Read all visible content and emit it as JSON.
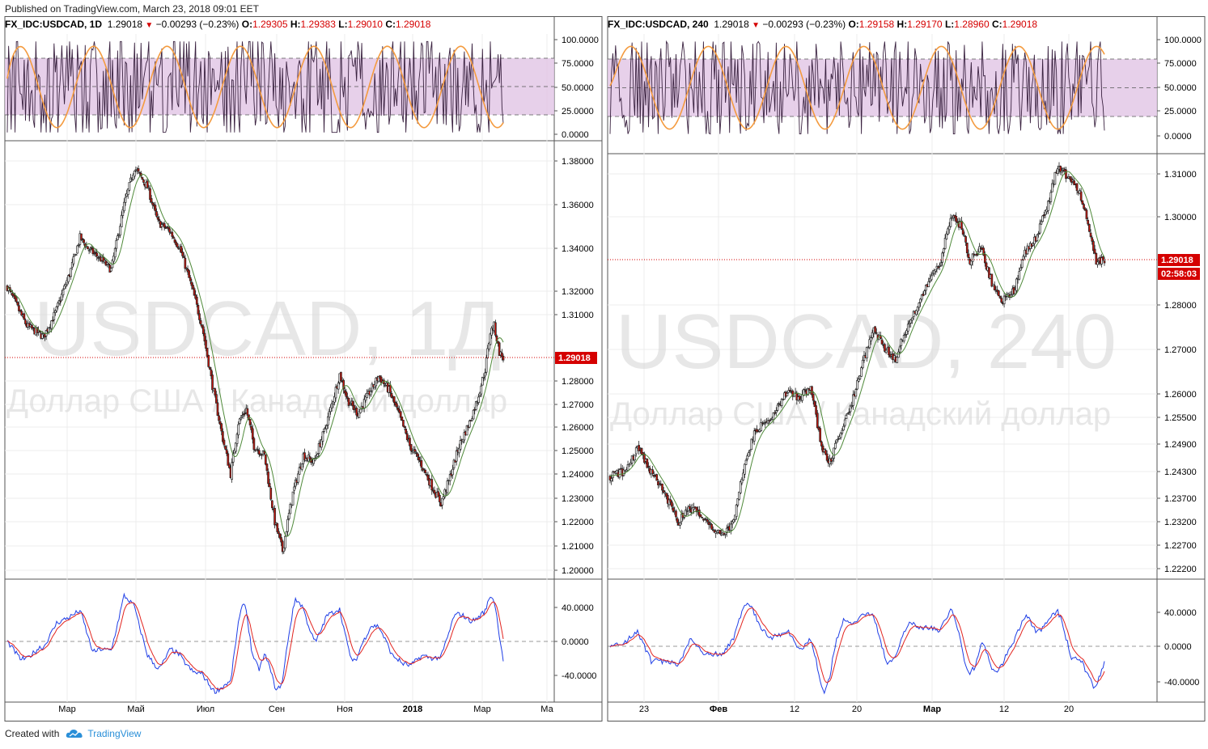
{
  "header": {
    "published": "Published on TradingView.com, March 23, 2018 09:01 EET"
  },
  "footer": {
    "created_with": "Created with",
    "brand": "TradingView"
  },
  "colors": {
    "candle_up": "#000000",
    "candle_down": "#c8180f",
    "ma_line": "#4f8a3a",
    "stoch_k": "#3a2240",
    "stoch_d": "#f49b3f",
    "stoch_band": "#e3c8e6",
    "macd_line": "#1f3ee6",
    "signal_line": "#e2241f",
    "price_line": "#d50000",
    "grid": "#ececec"
  },
  "panels": [
    {
      "symbol": "FX_IDC:USDCAD, 1D",
      "last": "1.29018",
      "change": "−0.00293 (−0.23%)",
      "open": "1.29305",
      "high": "1.29383",
      "low": "1.29010",
      "close": "1.29018",
      "watermark_big": "USDCAD, 1Д",
      "watermark_small": "Доллар США / Канадский доллар",
      "price_label": "1.29018",
      "stoch_ticks": [
        "100.0000",
        "75.0000",
        "50.0000",
        "25.0000",
        "0.0000"
      ],
      "price_ticks": [
        "1.38000",
        "1.36000",
        "1.34000",
        "1.32000",
        "1.31000",
        "1.28000",
        "1.27000",
        "1.26000",
        "1.25000",
        "1.24000",
        "1.23000",
        "1.22000",
        "1.21000",
        "1.20000"
      ],
      "macd_ticks": [
        "40.0000",
        "0.0000",
        "-40.0000"
      ],
      "x_ticks": [
        "Мар",
        "Май",
        "Июл",
        "Сен",
        "Ноя",
        "2018",
        "Мар",
        "Ма"
      ]
    },
    {
      "symbol": "FX_IDC:USDCAD, 240",
      "last": "1.29018",
      "change": "−0.00293 (−0.23%)",
      "open": "1.29158",
      "high": "1.29170",
      "low": "1.28960",
      "close": "1.29018",
      "watermark_big": "USDCAD, 240",
      "watermark_small": "Доллар США / Канадский доллар",
      "price_label": "1.29018",
      "countdown": "02:58:03",
      "stoch_ticks": [
        "100.0000",
        "75.0000",
        "50.0000",
        "25.0000",
        "0.0000"
      ],
      "price_ticks": [
        "1.31000",
        "1.30000",
        "1.28000",
        "1.27000",
        "1.26000",
        "1.25500",
        "1.24900",
        "1.24300",
        "1.23700",
        "1.23200",
        "1.22700",
        "1.22200"
      ],
      "macd_ticks": [
        "40.0000",
        "0.0000",
        "-40.0000"
      ],
      "x_ticks": [
        "23",
        "Фев",
        "12",
        "20",
        "Мар",
        "12",
        "20"
      ]
    }
  ],
  "chart_data": [
    {
      "type": "candlestick",
      "title": "FX_IDC:USDCAD, 1D",
      "x_ticks": [
        "Мар",
        "Май",
        "Июл",
        "Сен",
        "Ноя",
        "2018",
        "Мар",
        "Ма"
      ],
      "ylim": [
        1.2,
        1.385
      ],
      "last_price": 1.29018,
      "close_path": [
        [
          0,
          1.322
        ],
        [
          15,
          1.305
        ],
        [
          28,
          1.3
        ],
        [
          38,
          1.312
        ],
        [
          48,
          1.328
        ],
        [
          56,
          1.345
        ],
        [
          62,
          1.34
        ],
        [
          72,
          1.335
        ],
        [
          80,
          1.33
        ],
        [
          90,
          1.36
        ],
        [
          98,
          1.377
        ],
        [
          108,
          1.368
        ],
        [
          116,
          1.352
        ],
        [
          125,
          1.348
        ],
        [
          133,
          1.34
        ],
        [
          142,
          1.322
        ],
        [
          150,
          1.305
        ],
        [
          158,
          1.278
        ],
        [
          166,
          1.255
        ],
        [
          172,
          1.24
        ],
        [
          178,
          1.262
        ],
        [
          184,
          1.268
        ],
        [
          190,
          1.252
        ],
        [
          198,
          1.248
        ],
        [
          206,
          1.22
        ],
        [
          212,
          1.208
        ],
        [
          220,
          1.232
        ],
        [
          228,
          1.248
        ],
        [
          236,
          1.245
        ],
        [
          244,
          1.258
        ],
        [
          250,
          1.27
        ],
        [
          256,
          1.283
        ],
        [
          262,
          1.272
        ],
        [
          270,
          1.266
        ],
        [
          278,
          1.274
        ],
        [
          286,
          1.282
        ],
        [
          294,
          1.276
        ],
        [
          302,
          1.265
        ],
        [
          310,
          1.252
        ],
        [
          318,
          1.245
        ],
        [
          326,
          1.236
        ],
        [
          334,
          1.228
        ],
        [
          340,
          1.237
        ],
        [
          348,
          1.252
        ],
        [
          356,
          1.262
        ],
        [
          362,
          1.272
        ],
        [
          368,
          1.285
        ],
        [
          372,
          1.302
        ],
        [
          375,
          1.305
        ],
        [
          379,
          1.293
        ],
        [
          382,
          1.29018
        ]
      ],
      "stoch_range": [
        0,
        100
      ],
      "macd_range": [
        -70,
        70
      ]
    },
    {
      "type": "candlestick",
      "title": "FX_IDC:USDCAD, 240",
      "x_ticks": [
        "23",
        "Фев",
        "12",
        "20",
        "Мар",
        "12",
        "20"
      ],
      "ylim": [
        1.2215,
        1.3155
      ],
      "last_price": 1.29018,
      "close_path": [
        [
          0,
          1.242
        ],
        [
          10,
          1.243
        ],
        [
          20,
          1.248
        ],
        [
          30,
          1.243
        ],
        [
          40,
          1.238
        ],
        [
          50,
          1.232
        ],
        [
          58,
          1.235
        ],
        [
          66,
          1.233
        ],
        [
          74,
          1.231
        ],
        [
          82,
          1.229
        ],
        [
          90,
          1.232
        ],
        [
          98,
          1.245
        ],
        [
          106,
          1.252
        ],
        [
          114,
          1.254
        ],
        [
          122,
          1.257
        ],
        [
          130,
          1.261
        ],
        [
          138,
          1.259
        ],
        [
          146,
          1.262
        ],
        [
          154,
          1.248
        ],
        [
          160,
          1.245
        ],
        [
          168,
          1.252
        ],
        [
          176,
          1.258
        ],
        [
          184,
          1.267
        ],
        [
          192,
          1.275
        ],
        [
          200,
          1.27
        ],
        [
          208,
          1.268
        ],
        [
          216,
          1.275
        ],
        [
          224,
          1.28
        ],
        [
          232,
          1.285
        ],
        [
          240,
          1.289
        ],
        [
          248,
          1.3
        ],
        [
          256,
          1.298
        ],
        [
          262,
          1.29
        ],
        [
          270,
          1.293
        ],
        [
          278,
          1.285
        ],
        [
          286,
          1.281
        ],
        [
          294,
          1.283
        ],
        [
          302,
          1.292
        ],
        [
          310,
          1.295
        ],
        [
          318,
          1.302
        ],
        [
          326,
          1.312
        ],
        [
          334,
          1.309
        ],
        [
          342,
          1.306
        ],
        [
          348,
          1.298
        ],
        [
          354,
          1.29
        ],
        [
          360,
          1.29018
        ]
      ],
      "stoch_range": [
        0,
        100
      ],
      "macd_range": [
        -70,
        70
      ]
    }
  ]
}
